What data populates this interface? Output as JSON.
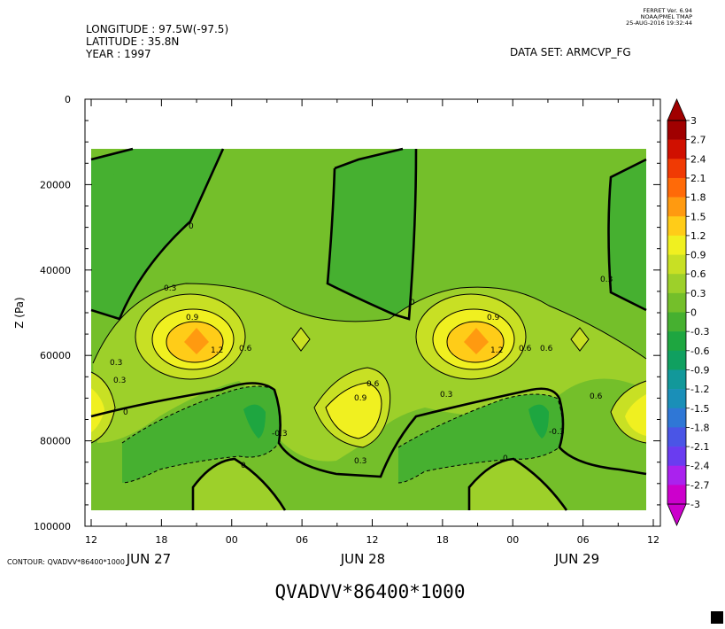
{
  "header": {
    "longitude": "LONGITUDE : 97.5W(-97.5)",
    "latitude": "LATITUDE : 35.8N",
    "year": "YEAR : 1997",
    "dataset": "DATA SET: ARMCVP_FG",
    "ferret_version": "FERRET Ver. 6.94",
    "ferret_org": "NOAA/PMEL TMAP",
    "ferret_date": "25-AUG-2016 19:32:44"
  },
  "footer": {
    "contour_note": "CONTOUR: QVADVV*86400*1000"
  },
  "colors": {
    "levels": [
      "#cc00cc",
      "#aa22ee",
      "#6a3cf0",
      "#4a55e6",
      "#2f77d6",
      "#1a8fb8",
      "#12989a",
      "#10a060",
      "#1ea640",
      "#46b030",
      "#74bf2a",
      "#9dd02a",
      "#c8e024",
      "#f0f020",
      "#ffcc18",
      "#ff9a10",
      "#ff6a08",
      "#f03a04",
      "#d01000",
      "#a00000"
    ]
  },
  "chart_data": {
    "type": "contour",
    "title": "QVADVV*86400*1000",
    "xlabel": "",
    "ylabel": "Z (Pa)",
    "x_tick_labels": [
      "12",
      "18",
      "00",
      "06",
      "12",
      "18",
      "00",
      "06",
      "12"
    ],
    "x_date_labels": [
      "JUN 27",
      "JUN 28",
      "JUN 29"
    ],
    "y_tick_labels": [
      "0",
      "20000",
      "40000",
      "60000",
      "80000",
      "100000"
    ],
    "ylim": [
      100000,
      0
    ],
    "y_reversed": true,
    "colorbar_levels": [
      "3",
      "2.7",
      "2.4",
      "2.1",
      "1.8",
      "1.5",
      "1.2",
      "0.9",
      "0.6",
      "0.3",
      "0",
      "-0.3",
      "-0.6",
      "-0.9",
      "-1.2",
      "-1.5",
      "-1.8",
      "-2.1",
      "-2.4",
      "-2.7",
      "-3"
    ],
    "contour_labels": [
      "0",
      "0",
      "0",
      "0",
      "0",
      "0.3",
      "0.3",
      "0.3",
      "0.3",
      "0.3",
      "0.3",
      "-0.3",
      "-0.3",
      "0.6",
      "0.6",
      "0.6",
      "0.6",
      "0.6",
      "0.9",
      "0.9",
      "0.9",
      "1.2",
      "1.2"
    ]
  }
}
